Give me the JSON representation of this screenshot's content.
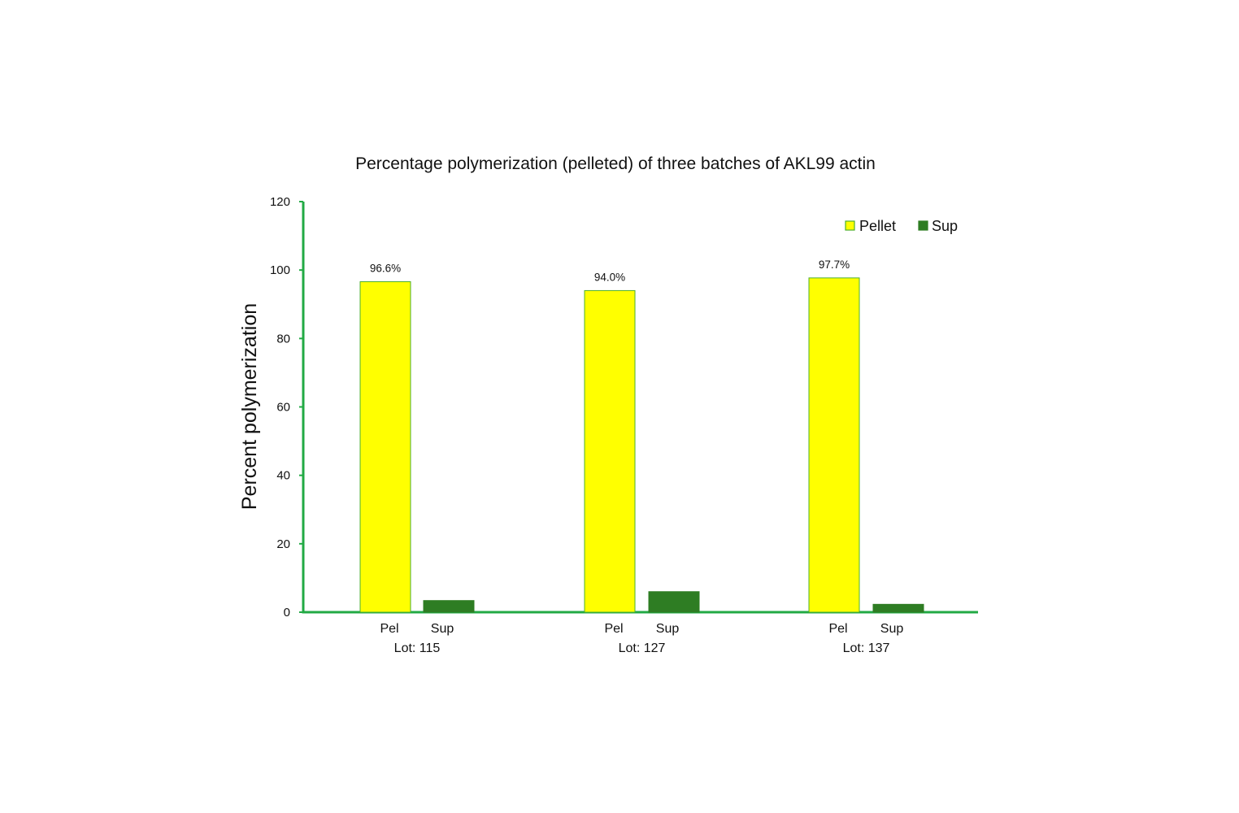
{
  "chart_data": {
    "type": "bar",
    "title": "Percentage polymerization (pelleted) of three batches of AKL99 actin",
    "ylabel": "Percent polymerization",
    "xlabel": "",
    "ylim": [
      0,
      120
    ],
    "yticks": [
      0,
      20,
      40,
      60,
      80,
      100,
      120
    ],
    "grid": false,
    "legend_position": "top-right",
    "groups": [
      {
        "label": "Lot: 115",
        "sub_labels": [
          "Pel",
          "Sup"
        ],
        "pellet": 96.6,
        "sup": 3.4,
        "pellet_label": "96.6%"
      },
      {
        "label": "Lot: 127",
        "sub_labels": [
          "Pel",
          "Sup"
        ],
        "pellet": 94.0,
        "sup": 6.0,
        "pellet_label": "94.0%"
      },
      {
        "label": "Lot: 137",
        "sub_labels": [
          "Pel",
          "Sup"
        ],
        "pellet": 97.7,
        "sup": 2.3,
        "pellet_label": "97.7%"
      }
    ],
    "series": [
      {
        "name": "Pellet",
        "color": "#ffff00",
        "stroke": "#4caf2e"
      },
      {
        "name": "Sup",
        "color": "#2e7d23",
        "stroke": "#2e7d23"
      }
    ],
    "axis_color": "#22aa44"
  }
}
